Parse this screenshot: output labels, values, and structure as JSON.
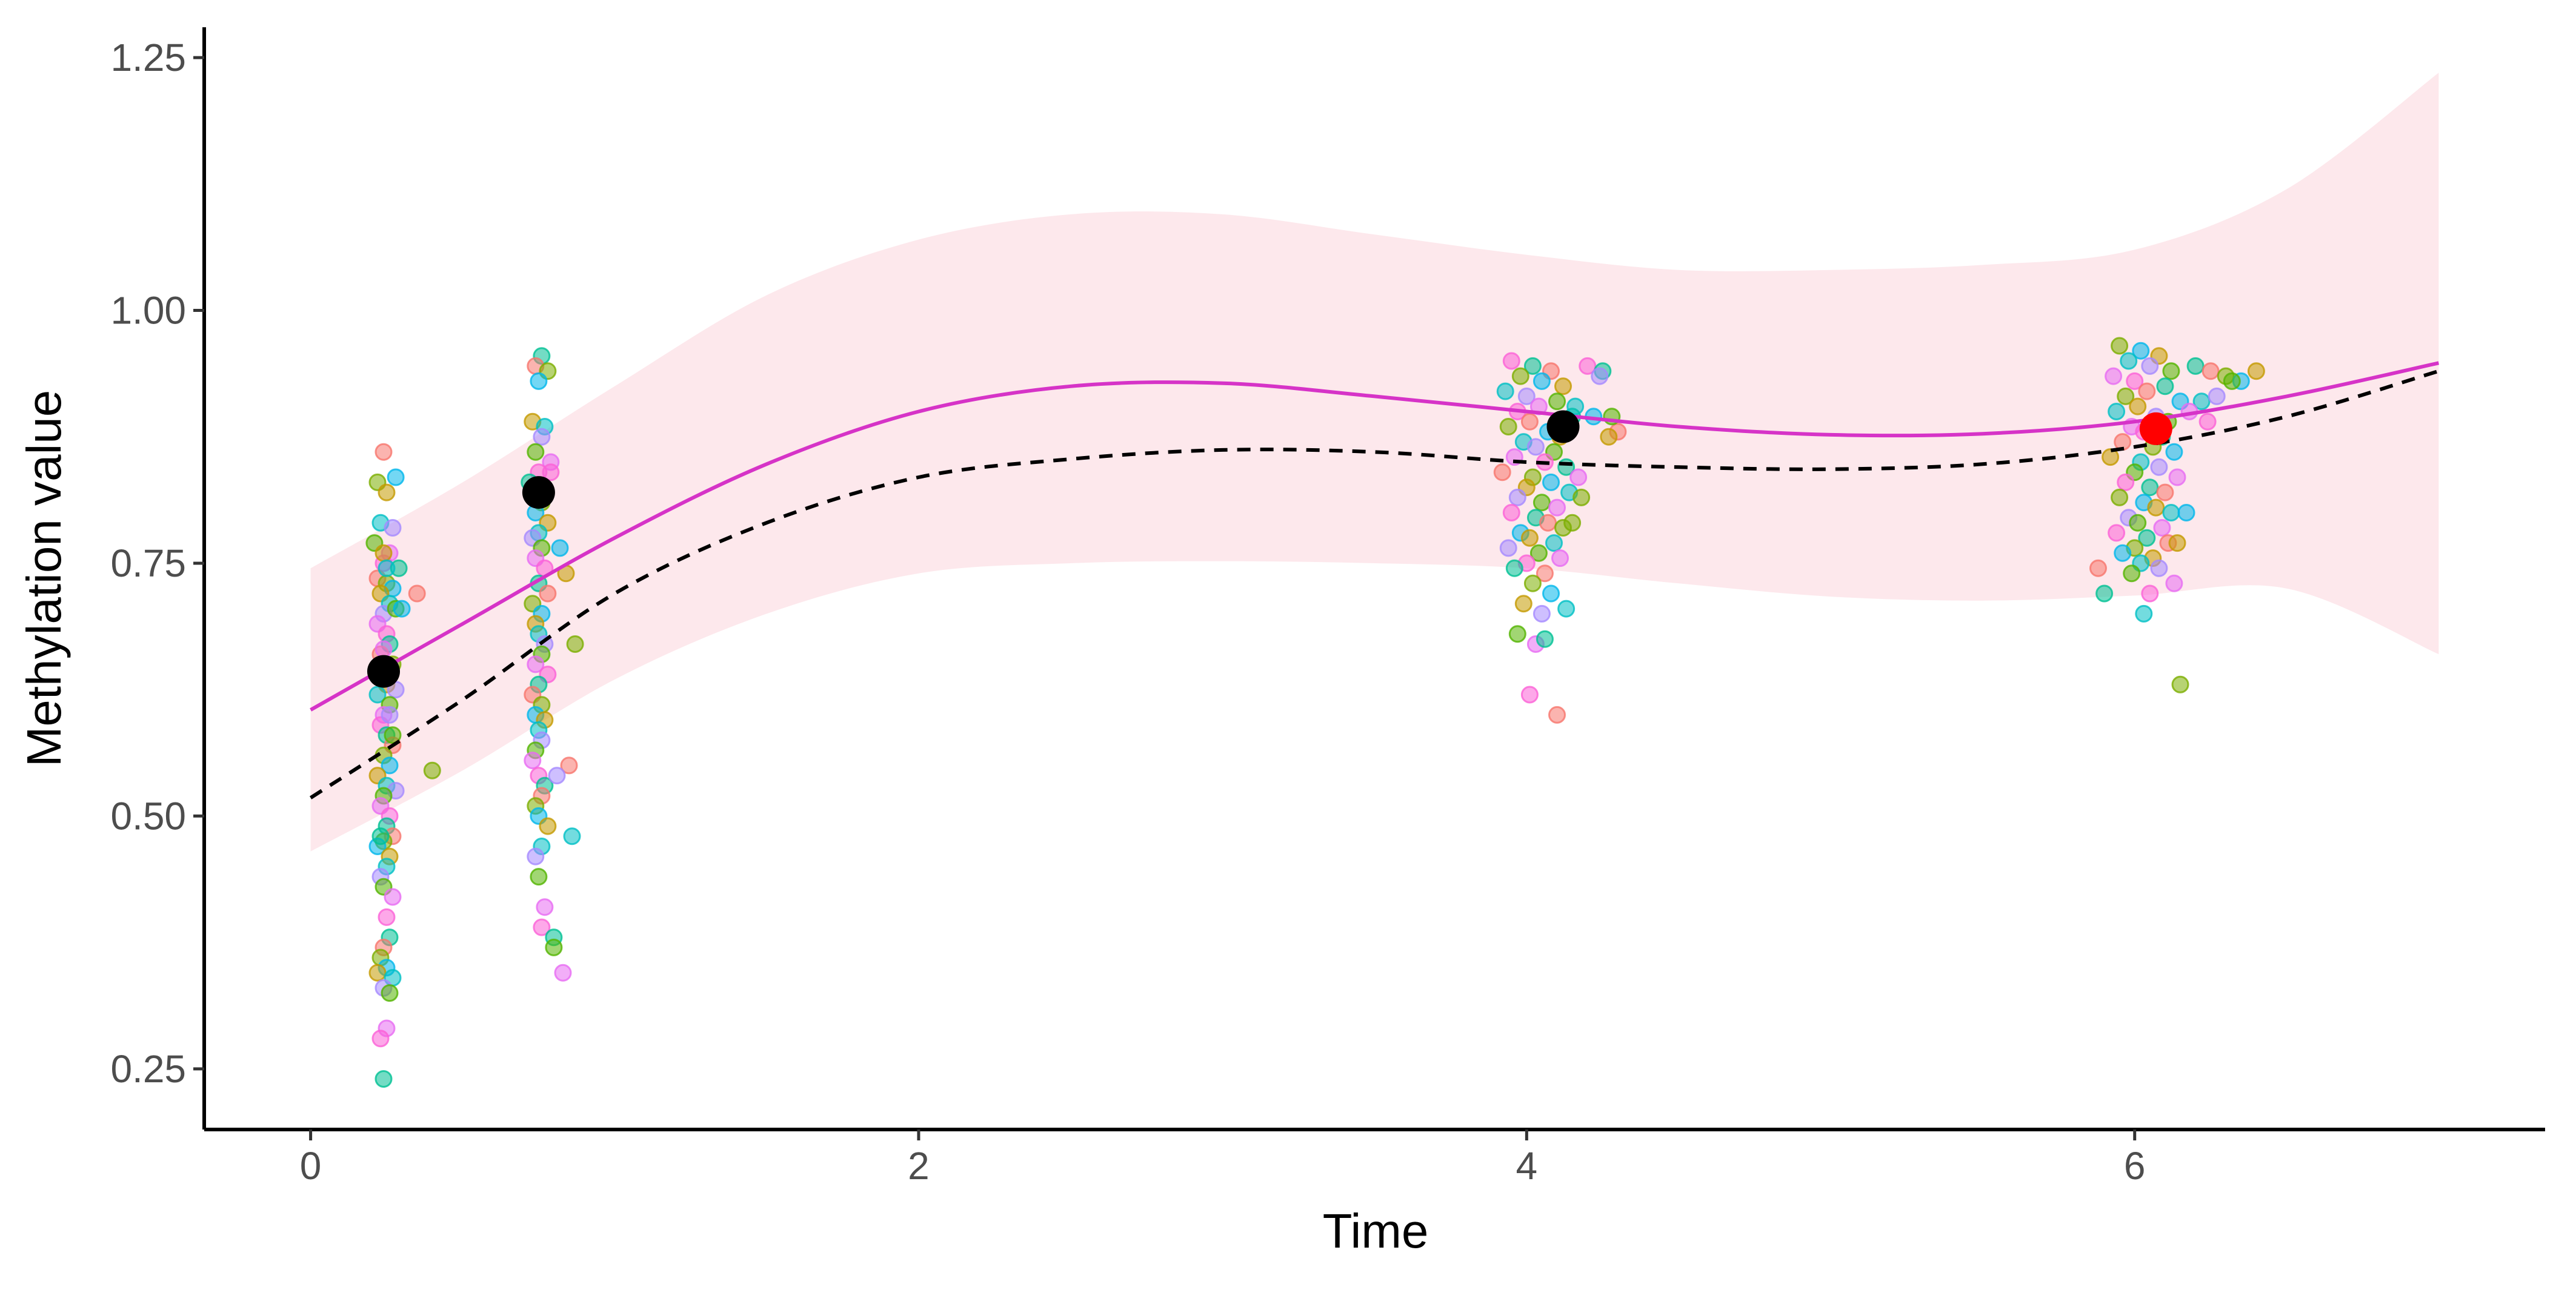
{
  "chart_data": {
    "type": "scatter",
    "title": "",
    "xlabel": "Time",
    "ylabel": "Methylation value",
    "xlim": [
      -0.35,
      7.35
    ],
    "ylim": [
      0.19,
      1.28
    ],
    "x_ticks": [
      0,
      2,
      4,
      6
    ],
    "x_tick_labels": [
      "0",
      "2",
      "4",
      "6"
    ],
    "y_ticks": [
      0.25,
      0.5,
      0.75,
      1.0,
      1.25
    ],
    "y_tick_labels": [
      "0.25",
      "0.50",
      "0.75",
      "1.00",
      "1.25"
    ],
    "grid": false,
    "legend": "none",
    "colors": {
      "fit_line": "#D633C7",
      "ribbon": "#FDE8EC",
      "dashed_line": "#000000",
      "mean_point": "#000000",
      "highlight_point": "#FF0000",
      "jitter_palette": [
        "#F8766D",
        "#C49A00",
        "#53B400",
        "#00C094",
        "#00B6EB",
        "#A58AFF",
        "#FB61D7",
        "#7CAE00",
        "#00BFC4",
        "#E76BF3"
      ]
    },
    "series": [
      {
        "name": "fitted curve",
        "style": "solid",
        "x": [
          0,
          0.5,
          1,
          1.5,
          2,
          2.5,
          3,
          3.5,
          4,
          4.5,
          5,
          5.5,
          6,
          6.5,
          7
        ],
        "y": [
          0.605,
          0.69,
          0.775,
          0.848,
          0.9,
          0.925,
          0.928,
          0.915,
          0.9,
          0.885,
          0.877,
          0.878,
          0.89,
          0.915,
          0.948
        ]
      },
      {
        "name": "confidence band upper",
        "style": "ribbon",
        "x": [
          0,
          0.5,
          1,
          1.5,
          2,
          2.5,
          3,
          3.5,
          4,
          4.5,
          5,
          5.5,
          6,
          6.5,
          7
        ],
        "y": [
          0.745,
          0.83,
          0.925,
          1.015,
          1.07,
          1.095,
          1.095,
          1.075,
          1.055,
          1.04,
          1.04,
          1.045,
          1.06,
          1.12,
          1.235
        ]
      },
      {
        "name": "confidence band lower",
        "style": "ribbon",
        "x": [
          0,
          0.5,
          1,
          1.5,
          2,
          2.5,
          3,
          3.5,
          4,
          4.5,
          5,
          5.5,
          6,
          6.5,
          7
        ],
        "y": [
          0.465,
          0.545,
          0.635,
          0.7,
          0.74,
          0.75,
          0.752,
          0.75,
          0.745,
          0.73,
          0.717,
          0.713,
          0.718,
          0.725,
          0.66
        ]
      },
      {
        "name": "dashed curve",
        "style": "dashed",
        "x": [
          0,
          0.5,
          1,
          1.5,
          2,
          2.5,
          3,
          3.5,
          4,
          4.5,
          5,
          5.5,
          6,
          6.5,
          7
        ],
        "y": [
          0.518,
          0.615,
          0.72,
          0.79,
          0.835,
          0.853,
          0.862,
          0.86,
          0.85,
          0.845,
          0.843,
          0.848,
          0.865,
          0.895,
          0.94
        ]
      }
    ],
    "mean_points": [
      {
        "x": 0.24,
        "y": 0.643,
        "color": "#000000"
      },
      {
        "x": 0.75,
        "y": 0.82,
        "color": "#000000"
      },
      {
        "x": 4.12,
        "y": 0.885,
        "color": "#000000"
      },
      {
        "x": 6.07,
        "y": 0.883,
        "color": "#FF0000"
      }
    ],
    "jitter_groups": [
      {
        "x_center": 0.25,
        "x": [
          0.24,
          0.22,
          0.28,
          0.25,
          0.23,
          0.27,
          0.21,
          0.26,
          0.24,
          0.29,
          0.22,
          0.25,
          0.27,
          0.23,
          0.26,
          0.24,
          0.28,
          0.22,
          0.25,
          0.26,
          0.23,
          0.27,
          0.24,
          0.25,
          0.22,
          0.28,
          0.26,
          0.24,
          0.23,
          0.25,
          0.27,
          0.24,
          0.26,
          0.22,
          0.25,
          0.28,
          0.24,
          0.23,
          0.26,
          0.25,
          0.27,
          0.24,
          0.22,
          0.26,
          0.25,
          0.23,
          0.24,
          0.27,
          0.25,
          0.26,
          0.24,
          0.23,
          0.25,
          0.22,
          0.27,
          0.24,
          0.26,
          0.25,
          0.23,
          0.24,
          0.35,
          0.4,
          0.3,
          0.24,
          0.25,
          0.26,
          0.27,
          0.24,
          0.25,
          0.23
        ],
        "y": [
          0.86,
          0.83,
          0.835,
          0.82,
          0.79,
          0.785,
          0.77,
          0.76,
          0.75,
          0.745,
          0.735,
          0.73,
          0.725,
          0.72,
          0.71,
          0.7,
          0.705,
          0.69,
          0.68,
          0.67,
          0.66,
          0.65,
          0.64,
          0.63,
          0.62,
          0.625,
          0.61,
          0.6,
          0.59,
          0.58,
          0.57,
          0.56,
          0.55,
          0.54,
          0.53,
          0.525,
          0.52,
          0.51,
          0.5,
          0.49,
          0.48,
          0.475,
          0.47,
          0.46,
          0.45,
          0.44,
          0.43,
          0.42,
          0.4,
          0.38,
          0.37,
          0.36,
          0.35,
          0.345,
          0.34,
          0.33,
          0.325,
          0.29,
          0.28,
          0.24,
          0.72,
          0.545,
          0.705,
          0.76,
          0.745,
          0.6,
          0.58,
          0.665,
          0.64,
          0.48
        ]
      },
      {
        "x_center": 0.75,
        "x": [
          0.76,
          0.74,
          0.78,
          0.75,
          0.73,
          0.77,
          0.76,
          0.74,
          0.79,
          0.75,
          0.72,
          0.77,
          0.76,
          0.74,
          0.78,
          0.75,
          0.73,
          0.76,
          0.74,
          0.77,
          0.75,
          0.78,
          0.73,
          0.76,
          0.74,
          0.75,
          0.77,
          0.76,
          0.74,
          0.78,
          0.75,
          0.73,
          0.76,
          0.74,
          0.77,
          0.75,
          0.76,
          0.74,
          0.73,
          0.75,
          0.77,
          0.76,
          0.74,
          0.75,
          0.78,
          0.76,
          0.74,
          0.75,
          0.77,
          0.76,
          0.8,
          0.85,
          0.87,
          0.82,
          0.84,
          0.86,
          0.81,
          0.8,
          0.83,
          0.79
        ],
        "y": [
          0.955,
          0.945,
          0.94,
          0.93,
          0.89,
          0.885,
          0.875,
          0.86,
          0.85,
          0.84,
          0.83,
          0.82,
          0.81,
          0.8,
          0.79,
          0.78,
          0.775,
          0.765,
          0.755,
          0.745,
          0.73,
          0.72,
          0.71,
          0.7,
          0.69,
          0.68,
          0.67,
          0.66,
          0.65,
          0.64,
          0.63,
          0.62,
          0.61,
          0.6,
          0.595,
          0.585,
          0.575,
          0.565,
          0.555,
          0.54,
          0.53,
          0.52,
          0.51,
          0.5,
          0.49,
          0.47,
          0.46,
          0.44,
          0.41,
          0.39,
          0.38,
          0.55,
          0.67,
          0.765,
          0.74,
          0.48,
          0.54,
          0.37,
          0.345,
          0.84
        ]
      },
      {
        "x_center": 4.0,
        "x": [
          3.95,
          4.02,
          4.08,
          3.98,
          4.05,
          4.12,
          3.93,
          4.0,
          4.1,
          4.04,
          3.97,
          4.15,
          4.01,
          3.94,
          4.07,
          4.11,
          3.99,
          4.03,
          4.09,
          3.96,
          4.06,
          4.13,
          3.92,
          4.02,
          4.08,
          4.0,
          4.14,
          3.97,
          4.05,
          4.1,
          3.95,
          4.03,
          4.07,
          4.12,
          3.98,
          4.01,
          4.09,
          3.94,
          4.04,
          4.11,
          4.0,
          3.96,
          4.06,
          4.02,
          4.08,
          3.99,
          4.13,
          4.05,
          3.97,
          4.03,
          4.2,
          4.25,
          4.3,
          4.18,
          4.22,
          4.27,
          4.16,
          4.24,
          4.28,
          4.17,
          4.01,
          4.06,
          4.1,
          4.15
        ],
        "y": [
          0.95,
          0.945,
          0.94,
          0.935,
          0.93,
          0.925,
          0.92,
          0.915,
          0.91,
          0.905,
          0.9,
          0.895,
          0.89,
          0.885,
          0.88,
          0.875,
          0.87,
          0.865,
          0.86,
          0.855,
          0.85,
          0.845,
          0.84,
          0.835,
          0.83,
          0.825,
          0.82,
          0.815,
          0.81,
          0.805,
          0.8,
          0.795,
          0.79,
          0.785,
          0.78,
          0.775,
          0.77,
          0.765,
          0.76,
          0.755,
          0.75,
          0.745,
          0.74,
          0.73,
          0.72,
          0.71,
          0.705,
          0.7,
          0.68,
          0.67,
          0.945,
          0.94,
          0.88,
          0.815,
          0.895,
          0.875,
          0.905,
          0.935,
          0.895,
          0.835,
          0.62,
          0.675,
          0.6,
          0.79
        ]
      },
      {
        "x_center": 6.05,
        "x": [
          5.95,
          6.02,
          6.08,
          5.98,
          6.05,
          6.12,
          5.93,
          6.0,
          6.1,
          6.04,
          5.97,
          6.15,
          6.01,
          5.94,
          6.07,
          6.11,
          5.99,
          6.03,
          6.09,
          5.96,
          6.06,
          6.13,
          5.92,
          6.02,
          6.08,
          6.0,
          6.14,
          5.97,
          6.05,
          6.1,
          5.95,
          6.03,
          6.07,
          6.12,
          5.98,
          6.01,
          6.09,
          5.94,
          6.04,
          6.11,
          6.0,
          5.96,
          6.06,
          6.02,
          6.08,
          5.99,
          6.13,
          6.05,
          6.2,
          6.25,
          6.3,
          6.35,
          6.4,
          6.22,
          6.27,
          6.32,
          6.18,
          6.24,
          5.9,
          5.88,
          6.15,
          6.17,
          6.14,
          6.03
        ],
        "y": [
          0.965,
          0.96,
          0.955,
          0.95,
          0.945,
          0.94,
          0.935,
          0.93,
          0.925,
          0.92,
          0.915,
          0.91,
          0.905,
          0.9,
          0.895,
          0.89,
          0.885,
          0.88,
          0.875,
          0.87,
          0.865,
          0.86,
          0.855,
          0.85,
          0.845,
          0.84,
          0.835,
          0.83,
          0.825,
          0.82,
          0.815,
          0.81,
          0.805,
          0.8,
          0.795,
          0.79,
          0.785,
          0.78,
          0.775,
          0.77,
          0.765,
          0.76,
          0.755,
          0.75,
          0.745,
          0.74,
          0.73,
          0.72,
          0.945,
          0.94,
          0.935,
          0.93,
          0.94,
          0.91,
          0.915,
          0.93,
          0.9,
          0.89,
          0.72,
          0.745,
          0.63,
          0.8,
          0.77,
          0.7
        ]
      }
    ]
  }
}
